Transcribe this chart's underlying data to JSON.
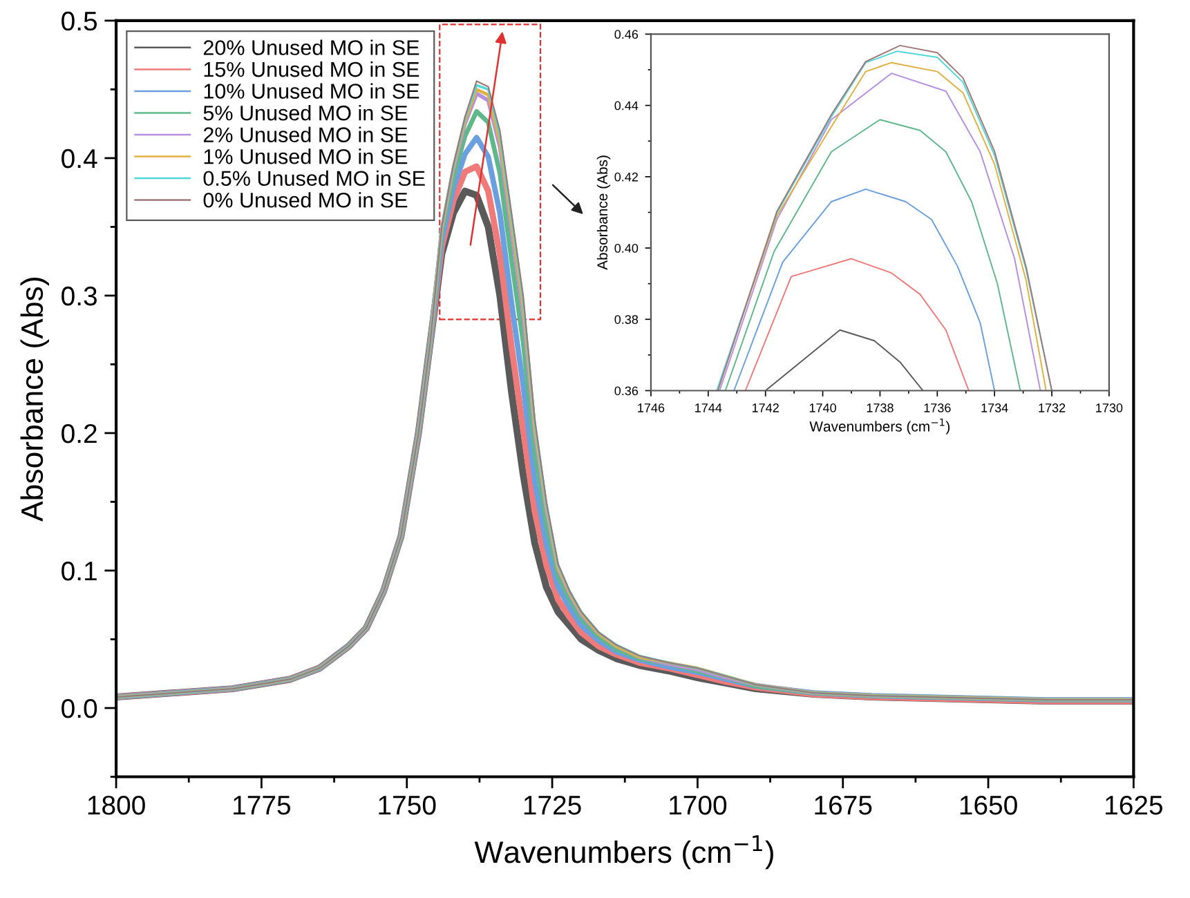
{
  "chart_data": [
    {
      "type": "line",
      "xlabel": "Wavenumbers (cm$^{−1}$)",
      "ylabel": "Absorbance (Abs)",
      "x": [
        1800,
        1790,
        1780,
        1770,
        1765,
        1760,
        1757,
        1754,
        1751,
        1748,
        1746,
        1744,
        1742,
        1740,
        1738,
        1736,
        1734,
        1732,
        1730,
        1728,
        1726,
        1724,
        1722,
        1720,
        1717,
        1714,
        1710,
        1705,
        1700,
        1695,
        1690,
        1680,
        1670,
        1660,
        1650,
        1640,
        1625
      ],
      "xlim": [
        1800,
        1625
      ],
      "xticks": [
        1800,
        1775,
        1750,
        1725,
        1700,
        1675,
        1650,
        1625
      ],
      "ylim": [
        -0.05,
        0.5
      ],
      "yticks": [
        {
          "value": 0,
          "label": "0.0"
        },
        {
          "value": 0.1,
          "label": "0.1"
        },
        {
          "value": 0.2,
          "label": "0.2"
        },
        {
          "value": 0.3,
          "label": "0.3"
        },
        {
          "value": 0.4,
          "label": "0.4"
        },
        {
          "value": 0.5,
          "label": "0.5"
        }
      ],
      "legend": "top left",
      "series": [
        {
          "name": "20% Unused MO in SE",
          "color": "#5a5a5a",
          "values": [
            0.008,
            0.011,
            0.014,
            0.021,
            0.029,
            0.045,
            0.058,
            0.085,
            0.125,
            0.2,
            0.265,
            0.33,
            0.36,
            0.376,
            0.373,
            0.35,
            0.3,
            0.23,
            0.17,
            0.12,
            0.088,
            0.07,
            0.06,
            0.05,
            0.042,
            0.036,
            0.031,
            0.027,
            0.022,
            0.018,
            0.014,
            0.01,
            0.008,
            0.007,
            0.006,
            0.005,
            0.005
          ]
        },
        {
          "name": "15% Unused MO in SE",
          "color": "#f07a7a",
          "values": [
            0.008,
            0.011,
            0.014,
            0.021,
            0.029,
            0.045,
            0.058,
            0.085,
            0.125,
            0.2,
            0.265,
            0.335,
            0.369,
            0.39,
            0.394,
            0.376,
            0.33,
            0.263,
            0.203,
            0.143,
            0.104,
            0.079,
            0.066,
            0.055,
            0.045,
            0.039,
            0.033,
            0.029,
            0.024,
            0.019,
            0.015,
            0.01,
            0.008,
            0.007,
            0.006,
            0.005,
            0.005
          ]
        },
        {
          "name": "10% Unused MO in SE",
          "color": "#6a9fe0",
          "values": [
            0.008,
            0.011,
            0.014,
            0.021,
            0.029,
            0.045,
            0.058,
            0.085,
            0.125,
            0.2,
            0.265,
            0.34,
            0.378,
            0.403,
            0.415,
            0.401,
            0.36,
            0.295,
            0.235,
            0.165,
            0.119,
            0.088,
            0.073,
            0.06,
            0.049,
            0.041,
            0.035,
            0.03,
            0.026,
            0.021,
            0.016,
            0.011,
            0.009,
            0.008,
            0.007,
            0.006,
            0.006
          ]
        },
        {
          "name": "5% Unused MO in SE",
          "color": "#5fb88a",
          "values": [
            0.008,
            0.011,
            0.014,
            0.021,
            0.029,
            0.045,
            0.058,
            0.085,
            0.125,
            0.2,
            0.265,
            0.345,
            0.386,
            0.416,
            0.434,
            0.426,
            0.389,
            0.326,
            0.266,
            0.187,
            0.134,
            0.096,
            0.079,
            0.065,
            0.052,
            0.043,
            0.036,
            0.032,
            0.027,
            0.022,
            0.016,
            0.011,
            0.009,
            0.008,
            0.007,
            0.006,
            0.006
          ]
        },
        {
          "name": "2% Unused MO in SE",
          "color": "#b58fe0",
          "values": [
            0.008,
            0.011,
            0.014,
            0.021,
            0.029,
            0.045,
            0.058,
            0.085,
            0.125,
            0.2,
            0.265,
            0.348,
            0.392,
            0.425,
            0.447,
            0.442,
            0.408,
            0.347,
            0.287,
            0.201,
            0.144,
            0.101,
            0.083,
            0.068,
            0.054,
            0.045,
            0.037,
            0.032,
            0.028,
            0.022,
            0.017,
            0.011,
            0.009,
            0.008,
            0.007,
            0.006,
            0.006
          ]
        },
        {
          "name": "1% Unused MO in SE",
          "color": "#e0b040",
          "values": [
            0.008,
            0.011,
            0.014,
            0.021,
            0.029,
            0.045,
            0.058,
            0.085,
            0.125,
            0.2,
            0.265,
            0.349,
            0.393,
            0.427,
            0.45,
            0.446,
            0.412,
            0.352,
            0.292,
            0.204,
            0.146,
            0.102,
            0.084,
            0.069,
            0.054,
            0.045,
            0.037,
            0.033,
            0.029,
            0.023,
            0.017,
            0.011,
            0.009,
            0.008,
            0.007,
            0.006,
            0.006
          ]
        },
        {
          "name": "0.5% Unused MO in SE",
          "color": "#50d8d8",
          "values": [
            0.008,
            0.011,
            0.014,
            0.021,
            0.029,
            0.045,
            0.058,
            0.085,
            0.125,
            0.2,
            0.265,
            0.35,
            0.394,
            0.429,
            0.453,
            0.45,
            0.417,
            0.357,
            0.297,
            0.208,
            0.148,
            0.104,
            0.085,
            0.07,
            0.055,
            0.046,
            0.038,
            0.033,
            0.029,
            0.023,
            0.017,
            0.011,
            0.009,
            0.008,
            0.007,
            0.006,
            0.006
          ]
        },
        {
          "name": "0% Unused MO in SE",
          "color": "#a07878",
          "values": [
            0.008,
            0.011,
            0.014,
            0.021,
            0.029,
            0.045,
            0.058,
            0.085,
            0.125,
            0.2,
            0.265,
            0.35,
            0.395,
            0.43,
            0.456,
            0.452,
            0.42,
            0.36,
            0.3,
            0.21,
            0.15,
            0.105,
            0.085,
            0.07,
            0.055,
            0.046,
            0.038,
            0.033,
            0.029,
            0.023,
            0.017,
            0.011,
            0.009,
            0.008,
            0.007,
            0.006,
            0.006
          ]
        }
      ]
    },
    {
      "type": "line",
      "xlabel": "Wavenumbers (cm$^{−1}$)",
      "ylabel": "Absorbance (Abs)",
      "xlim": [
        1746,
        1730
      ],
      "xticks": [
        1746,
        1744,
        1742,
        1740,
        1738,
        1736,
        1734,
        1732,
        1730
      ],
      "ylim": [
        0.36,
        0.46
      ],
      "yticks": [
        0.36,
        0.38,
        {
          "value": 0.4,
          "label": "0.40"
        },
        0.42,
        0.44,
        0.46
      ],
      "series": [
        {
          "color": "#5a5a5a",
          "x": [
            1742,
            1739.4,
            1738.2,
            1737.3,
            1736.5
          ],
          "values": [
            0.36,
            0.377,
            0.374,
            0.368,
            0.36
          ]
        },
        {
          "color": "#f07a7a",
          "x": [
            1742.7,
            1741.1,
            1739,
            1737.6,
            1736.6,
            1735.7,
            1734.9
          ],
          "values": [
            0.36,
            0.392,
            0.397,
            0.393,
            0.387,
            0.377,
            0.36
          ]
        },
        {
          "color": "#6a9fe0",
          "x": [
            1743.1,
            1741.4,
            1739.7,
            1738.5,
            1737.1,
            1736.2,
            1735.3,
            1734.5,
            1734
          ],
          "values": [
            0.36,
            0.396,
            0.413,
            0.4165,
            0.413,
            0.408,
            0.395,
            0.379,
            0.36
          ]
        },
        {
          "color": "#5fb88a",
          "x": [
            1743.4,
            1741.7,
            1739.7,
            1738,
            1736.6,
            1735.7,
            1734.8,
            1733.9,
            1733.1
          ],
          "values": [
            0.36,
            0.399,
            0.427,
            0.436,
            0.433,
            0.427,
            0.413,
            0.39,
            0.36
          ]
        },
        {
          "color": "#b58fe0",
          "x": [
            1743.6,
            1741.6,
            1739.7,
            1737.6,
            1735.7,
            1734.5,
            1733.3,
            1732.4
          ],
          "values": [
            0.36,
            0.408,
            0.436,
            0.449,
            0.444,
            0.427,
            0.397,
            0.36
          ]
        },
        {
          "color": "#e0b040",
          "x": [
            1743.7,
            1741.6,
            1739.7,
            1738.5,
            1737.6,
            1736,
            1735.1,
            1734,
            1732.9,
            1732.2
          ],
          "values": [
            0.36,
            0.409,
            0.434,
            0.4495,
            0.452,
            0.4495,
            0.4435,
            0.4235,
            0.391,
            0.36
          ]
        },
        {
          "color": "#50d8d8",
          "x": [
            1743.7,
            1741.6,
            1739.7,
            1738.5,
            1737.4,
            1736,
            1735.1,
            1734,
            1732.9,
            1732
          ],
          "values": [
            0.36,
            0.4098,
            0.4368,
            0.452,
            0.4552,
            0.4535,
            0.4465,
            0.426,
            0.394,
            0.36
          ]
        },
        {
          "color": "#a07878",
          "x": [
            1743.66,
            1741.6,
            1739.7,
            1738.5,
            1737.3,
            1736,
            1735.1,
            1734,
            1732.9,
            1732
          ],
          "values": [
            0.36,
            0.4103,
            0.4374,
            0.4523,
            0.4568,
            0.4548,
            0.4477,
            0.4271,
            0.3948,
            0.36
          ]
        }
      ]
    }
  ]
}
